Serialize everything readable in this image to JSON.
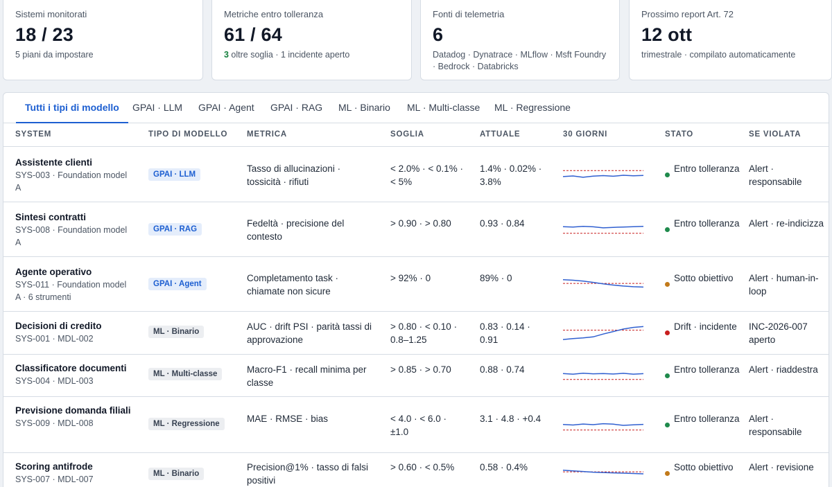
{
  "summary_cards": [
    {
      "label": "Sistemi monitorati",
      "value": "18 / 23",
      "sub_plain": "5 piani da impostare"
    },
    {
      "label": "Metriche entro tolleranza",
      "value": "61 / 64",
      "sub_highlight": "3",
      "sub_rest": " oltre soglia · 1 incidente aperto"
    },
    {
      "label": "Fonti di telemetria",
      "value": "6",
      "sub_plain": "Datadog · Dynatrace · MLflow · Msft Foundry · Bedrock · Databricks"
    },
    {
      "label": "Prossimo report Art. 72",
      "value": "12 ott",
      "sub_plain": "trimestrale · compilato automaticamente"
    }
  ],
  "tabs": [
    {
      "label": "Tutti i tipi di modello",
      "active": true
    },
    {
      "label": "GPAI · LLM"
    },
    {
      "label": "GPAI · Agent"
    },
    {
      "label": "GPAI · RAG"
    },
    {
      "label": "ML · Binario"
    },
    {
      "label": "ML · Multi-classe"
    },
    {
      "label": "ML · Regressione"
    }
  ],
  "columns": [
    "System",
    "Tipo di modello",
    "Metrica",
    "Soglia",
    "Attuale",
    "30 giorni",
    "Stato",
    "Se violata"
  ],
  "status_colors": {
    "ok": "#1f8a4c",
    "warn": "#c27a1a",
    "drift": "#c81e1e"
  },
  "rows": [
    {
      "name": "Assistente clienti",
      "id": "SYS-003 · Foundation model A",
      "type": "GPAI · LLM",
      "kind": "gpai",
      "metric": "Tasso di allucinazioni · tossicità · rifiuti",
      "threshold": "< 2.0% · < 0.1% · < 5%",
      "current": "1.4% · 0.02% · 3.8%",
      "status": "Entro tolleranza",
      "status_kind": "ok",
      "action": "Alert · responsabile",
      "trend": [
        0.42,
        0.46,
        0.38,
        0.45,
        0.48,
        0.44,
        0.5,
        0.47,
        0.49
      ],
      "threshold_level": 0.78
    },
    {
      "name": "Sintesi contratti",
      "id": "SYS-008 · Foundation model A",
      "type": "GPAI · RAG",
      "kind": "gpai",
      "metric": "Fedeltà · precisione del contesto",
      "threshold": "> 0.90 · > 0.80",
      "current": "0.93 · 0.84",
      "status": "Entro tolleranza",
      "status_kind": "ok",
      "action": "Alert · re-indicizza",
      "trend": [
        0.7,
        0.68,
        0.72,
        0.69,
        0.63,
        0.66,
        0.68,
        0.7,
        0.72
      ],
      "threshold_level": 0.3
    },
    {
      "name": "Agente operativo",
      "id": "SYS-011 · Foundation model A · 6 strumenti",
      "type": "GPAI · Agent",
      "kind": "gpai",
      "metric": "Completamento task · chiamate non sicure",
      "threshold": "> 92% · 0",
      "current": "89% · 0",
      "status": "Sotto obiettivo",
      "status_kind": "warn",
      "action": "Alert · human-in-loop",
      "trend": [
        0.8,
        0.77,
        0.72,
        0.64,
        0.55,
        0.48,
        0.42,
        0.38,
        0.36
      ],
      "threshold_level": 0.58
    },
    {
      "name": "Decisioni di credito",
      "id": "SYS-001 · MDL-002",
      "type": "ML · Binario",
      "kind": "ml",
      "metric": "AUC · drift PSI · parità tassi di approvazione",
      "threshold": "> 0.80 · < 0.10 · 0.8–1.25",
      "current": "0.83 · 0.14 · 0.91",
      "status": "Drift · incidente",
      "status_kind": "drift",
      "action": "INC-2026-007 aperto",
      "trend": [
        0.12,
        0.18,
        0.22,
        0.28,
        0.45,
        0.6,
        0.75,
        0.85,
        0.9
      ],
      "threshold_level": 0.68
    },
    {
      "name": "Classificatore documenti",
      "id": "SYS-004 · MDL-003",
      "type": "ML · Multi-classe",
      "kind": "ml",
      "metric": "Macro-F1 · recall minima per classe",
      "threshold": "> 0.85 · > 0.70",
      "current": "0.88 · 0.74",
      "status": "Entro tolleranza",
      "status_kind": "ok",
      "action": "Alert · riaddestra",
      "trend": [
        0.66,
        0.62,
        0.68,
        0.64,
        0.66,
        0.63,
        0.67,
        0.62,
        0.65
      ],
      "threshold_level": 0.3
    },
    {
      "name": "Previsione domanda filiali",
      "id": "SYS-009 · MDL-008",
      "type": "ML · Regressione",
      "kind": "ml",
      "metric": "MAE · RMSE · bias",
      "threshold": "< 4.0 · < 6.0 · ±1.0",
      "current": "3.1 · 4.8 · +0.4",
      "status": "Entro tolleranza",
      "status_kind": "ok",
      "action": "Alert · responsabile",
      "trend": [
        0.55,
        0.52,
        0.58,
        0.54,
        0.6,
        0.57,
        0.5,
        0.53,
        0.56
      ],
      "threshold_level": 0.22
    },
    {
      "name": "Scoring antifrode",
      "id": "SYS-007 · MDL-007",
      "type": "ML · Binario",
      "kind": "ml",
      "metric": "Precision@1% · tasso di falsi positivi",
      "threshold": "> 0.60 · < 0.5%",
      "current": "0.58 · 0.4%",
      "status": "Sotto obiettivo",
      "status_kind": "warn",
      "action": "Alert · revisione",
      "trend": [
        0.72,
        0.68,
        0.64,
        0.6,
        0.58,
        0.56,
        0.54,
        0.52,
        0.5
      ],
      "threshold_level": 0.62
    }
  ]
}
